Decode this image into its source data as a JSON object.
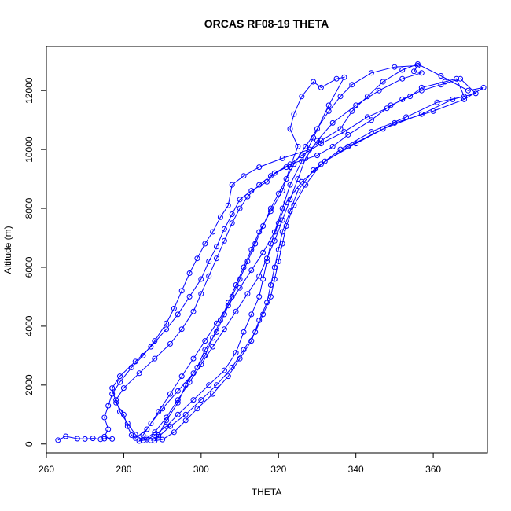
{
  "chart_data": {
    "type": "line",
    "title": "ORCAS RF08-19 THETA",
    "xlabel": "THETA",
    "ylabel": "Altitude (m)",
    "xlim": [
      260,
      374
    ],
    "ylim": [
      -300,
      13500
    ],
    "xticks": [
      260,
      280,
      300,
      320,
      340,
      360
    ],
    "yticks": [
      0,
      2000,
      4000,
      6000,
      8000,
      10000,
      12000
    ],
    "grid": false,
    "legend": "none",
    "series": [
      {
        "color": "#0000ff",
        "marker": "open-circle",
        "points": [
          [
            263,
            130
          ],
          [
            265,
            260
          ],
          [
            268,
            180
          ],
          [
            270,
            170
          ],
          [
            272,
            190
          ],
          [
            274,
            160
          ],
          [
            275,
            180
          ],
          [
            277,
            170
          ],
          [
            275,
            250
          ],
          [
            276,
            500
          ],
          [
            275,
            900
          ],
          [
            276,
            1300
          ],
          [
            277,
            1700
          ],
          [
            279,
            2100
          ],
          [
            282,
            2600
          ],
          [
            285,
            3000
          ],
          [
            288,
            3500
          ],
          [
            291,
            4100
          ],
          [
            293,
            4600
          ],
          [
            295,
            5200
          ],
          [
            297,
            5800
          ],
          [
            299,
            6300
          ],
          [
            301,
            6800
          ],
          [
            303,
            7200
          ],
          [
            305,
            7700
          ],
          [
            307,
            8100
          ],
          [
            308,
            8800
          ],
          [
            311,
            9100
          ],
          [
            315,
            9400
          ],
          [
            321,
            9700
          ],
          [
            328,
            10000
          ],
          [
            331,
            10300
          ],
          [
            336,
            10700
          ],
          [
            339,
            11300
          ],
          [
            343,
            11800
          ],
          [
            347,
            12300
          ],
          [
            352,
            12700
          ],
          [
            356,
            12900
          ],
          [
            362,
            12500
          ],
          [
            369,
            12000
          ],
          [
            373,
            12100
          ],
          [
            368,
            11700
          ],
          [
            360,
            11300
          ],
          [
            350,
            10900
          ],
          [
            340,
            10200
          ],
          [
            332,
            9600
          ],
          [
            326,
            8900
          ],
          [
            322,
            8200
          ],
          [
            320,
            7500
          ],
          [
            318,
            6800
          ],
          [
            317,
            6200
          ],
          [
            316,
            5600
          ],
          [
            315,
            5000
          ],
          [
            313,
            4400
          ],
          [
            311,
            3800
          ],
          [
            309,
            3100
          ],
          [
            306,
            2500
          ],
          [
            302,
            2000
          ],
          [
            298,
            1500
          ],
          [
            294,
            1000
          ],
          [
            291,
            600
          ],
          [
            288,
            300
          ],
          [
            286,
            150
          ],
          [
            284,
            100
          ],
          [
            285,
            300
          ],
          [
            287,
            700
          ],
          [
            290,
            1200
          ],
          [
            294,
            1800
          ],
          [
            298,
            2400
          ],
          [
            301,
            3000
          ],
          [
            303,
            3600
          ],
          [
            305,
            4200
          ],
          [
            307,
            4800
          ],
          [
            309,
            5400
          ],
          [
            311,
            6000
          ],
          [
            313,
            6600
          ],
          [
            315,
            7200
          ],
          [
            318,
            7900
          ],
          [
            321,
            8600
          ],
          [
            323,
            9400
          ],
          [
            325,
            10100
          ],
          [
            323,
            10700
          ],
          [
            324,
            11200
          ],
          [
            326,
            11800
          ],
          [
            329,
            12300
          ],
          [
            331,
            12100
          ],
          [
            335,
            12400
          ],
          [
            337,
            12450
          ],
          [
            333,
            11500
          ],
          [
            329,
            10400
          ],
          [
            326,
            9600
          ],
          [
            323,
            8800
          ],
          [
            321,
            8000
          ],
          [
            319,
            7200
          ],
          [
            316,
            6500
          ],
          [
            313,
            5900
          ],
          [
            310,
            5300
          ],
          [
            307,
            4700
          ],
          [
            304,
            4100
          ],
          [
            301,
            3500
          ],
          [
            298,
            2900
          ],
          [
            295,
            2300
          ],
          [
            292,
            1700
          ],
          [
            289,
            1100
          ],
          [
            286,
            500
          ],
          [
            283,
            200
          ],
          [
            282,
            300
          ],
          [
            281,
            600
          ],
          [
            280,
            1000
          ],
          [
            278,
            1400
          ],
          [
            277,
            1900
          ],
          [
            279,
            2300
          ],
          [
            283,
            2800
          ],
          [
            287,
            3300
          ],
          [
            291,
            3900
          ],
          [
            294,
            4400
          ],
          [
            297,
            5000
          ],
          [
            300,
            5600
          ],
          [
            302,
            6200
          ],
          [
            304,
            6700
          ],
          [
            306,
            7300
          ],
          [
            308,
            7800
          ],
          [
            310,
            8300
          ],
          [
            313,
            8600
          ],
          [
            317,
            8900
          ],
          [
            319,
            9200
          ],
          [
            323,
            9500
          ],
          [
            330,
            9800
          ],
          [
            334,
            10100
          ],
          [
            338,
            10500
          ],
          [
            344,
            11000
          ],
          [
            349,
            11500
          ],
          [
            354,
            11800
          ],
          [
            357,
            12100
          ],
          [
            363,
            12300
          ],
          [
            366,
            12400
          ],
          [
            368,
            11800
          ],
          [
            361,
            11600
          ],
          [
            353,
            11100
          ],
          [
            344,
            10600
          ],
          [
            336,
            10000
          ],
          [
            329,
            9300
          ],
          [
            325,
            8600
          ],
          [
            323,
            7900
          ],
          [
            321,
            7200
          ],
          [
            320,
            6600
          ],
          [
            319,
            6000
          ],
          [
            318,
            5400
          ],
          [
            317,
            4800
          ],
          [
            315,
            4200
          ],
          [
            313,
            3500
          ],
          [
            310,
            2900
          ],
          [
            307,
            2300
          ],
          [
            303,
            1700
          ],
          [
            299,
            1200
          ],
          [
            296,
            800
          ],
          [
            293,
            400
          ],
          [
            290,
            150
          ],
          [
            288,
            110
          ],
          [
            289,
            300
          ],
          [
            291,
            800
          ],
          [
            294,
            1400
          ],
          [
            296,
            2000
          ],
          [
            299,
            2600
          ],
          [
            301,
            3200
          ],
          [
            304,
            3800
          ],
          [
            306,
            4400
          ],
          [
            308,
            5000
          ],
          [
            310,
            5600
          ],
          [
            312,
            6200
          ],
          [
            314,
            6800
          ],
          [
            316,
            7400
          ],
          [
            318,
            8000
          ],
          [
            320,
            8500
          ],
          [
            322,
            9000
          ],
          [
            324,
            9500
          ],
          [
            327,
            10100
          ],
          [
            330,
            10700
          ],
          [
            333,
            11300
          ],
          [
            336,
            11800
          ],
          [
            339,
            12200
          ],
          [
            344,
            12600
          ],
          [
            350,
            12800
          ],
          [
            356,
            12850
          ],
          [
            355,
            12650
          ],
          [
            357,
            12600
          ],
          [
            352,
            12400
          ],
          [
            346,
            12000
          ],
          [
            340,
            11500
          ],
          [
            334,
            10900
          ],
          [
            330,
            10300
          ],
          [
            327,
            9700
          ],
          [
            325,
            9000
          ],
          [
            323,
            8300
          ],
          [
            321,
            7600
          ],
          [
            319,
            6900
          ],
          [
            317,
            6300
          ],
          [
            315,
            5700
          ],
          [
            312,
            5100
          ],
          [
            309,
            4500
          ],
          [
            306,
            3900
          ],
          [
            303,
            3300
          ],
          [
            300,
            2700
          ],
          [
            297,
            2100
          ],
          [
            294,
            1500
          ],
          [
            291,
            900
          ],
          [
            288,
            400
          ],
          [
            286,
            200
          ],
          [
            285,
            120
          ],
          [
            283,
            320
          ],
          [
            281,
            700
          ],
          [
            279,
            1100
          ],
          [
            278,
            1500
          ],
          [
            280,
            1900
          ],
          [
            284,
            2400
          ],
          [
            288,
            2900
          ],
          [
            292,
            3400
          ],
          [
            295,
            3900
          ],
          [
            298,
            4500
          ],
          [
            300,
            5100
          ],
          [
            302,
            5700
          ],
          [
            304,
            6300
          ],
          [
            306,
            6900
          ],
          [
            308,
            7500
          ],
          [
            310,
            8000
          ],
          [
            312,
            8400
          ],
          [
            315,
            8800
          ],
          [
            318,
            9100
          ],
          [
            322,
            9400
          ],
          [
            326,
            9800
          ],
          [
            331,
            10200
          ],
          [
            337,
            10600
          ],
          [
            343,
            11100
          ],
          [
            348,
            11400
          ],
          [
            352,
            11700
          ],
          [
            357,
            12000
          ],
          [
            362,
            12200
          ],
          [
            367,
            12400
          ],
          [
            371,
            11900
          ],
          [
            365,
            11700
          ],
          [
            357,
            11200
          ],
          [
            347,
            10700
          ],
          [
            338,
            10100
          ],
          [
            331,
            9500
          ],
          [
            327,
            8800
          ],
          [
            324,
            8100
          ],
          [
            322,
            7400
          ],
          [
            321,
            6800
          ],
          [
            320,
            6200
          ],
          [
            319,
            5600
          ],
          [
            318,
            5000
          ],
          [
            316,
            4400
          ],
          [
            314,
            3800
          ],
          [
            311,
            3200
          ],
          [
            308,
            2600
          ],
          [
            304,
            2000
          ],
          [
            300,
            1500
          ],
          [
            296,
            1000
          ],
          [
            292,
            600
          ],
          [
            289,
            250
          ],
          [
            287,
            120
          ]
        ]
      }
    ]
  }
}
